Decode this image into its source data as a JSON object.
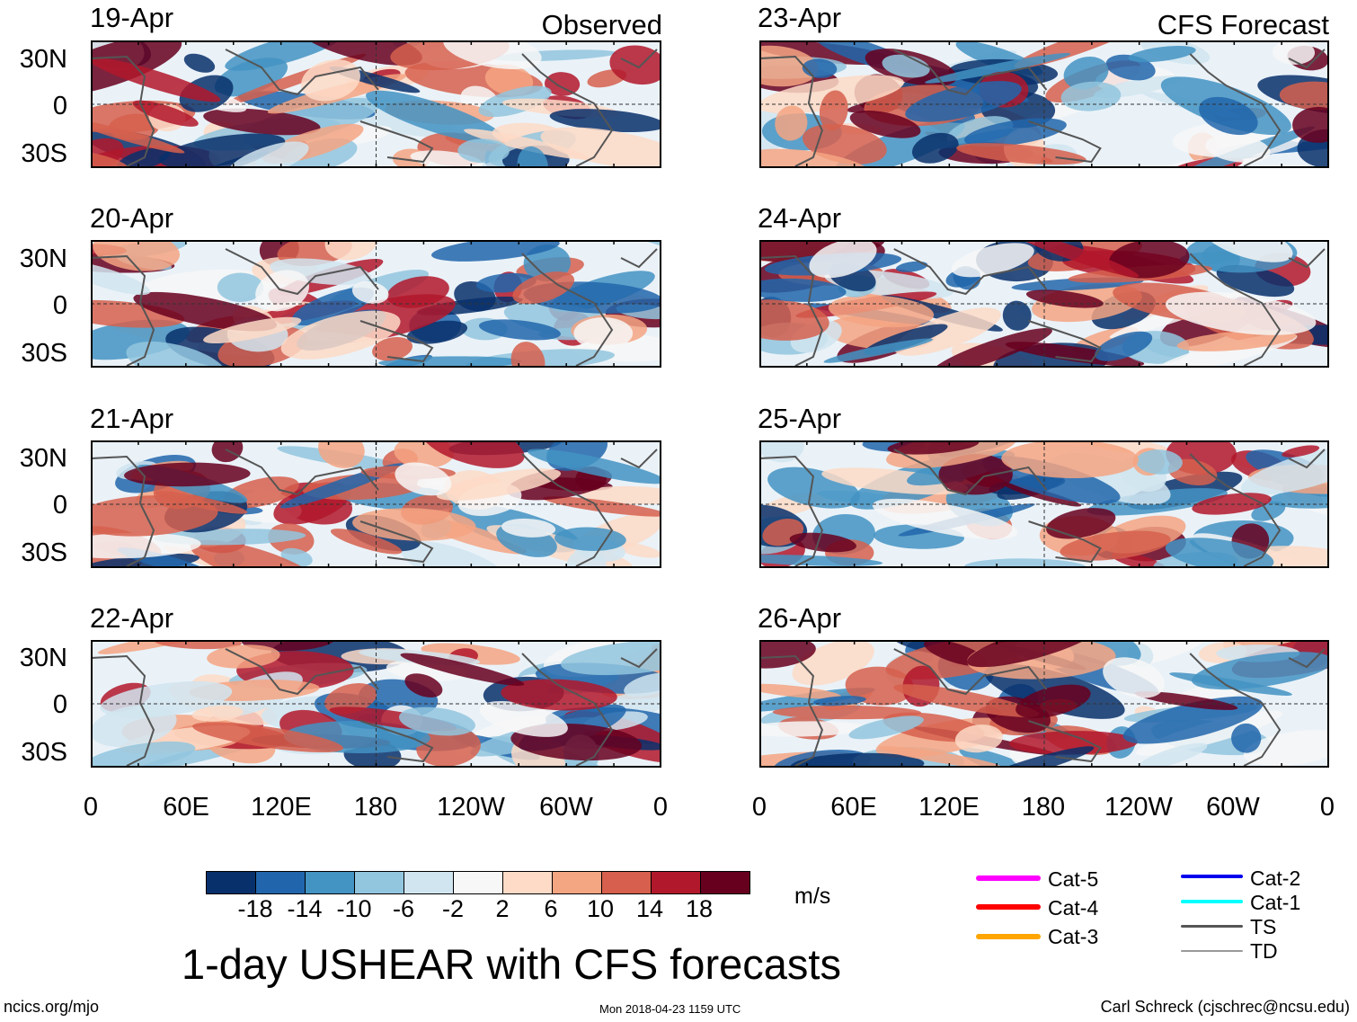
{
  "title": "1-day USHEAR with CFS forecasts",
  "units": "m/s",
  "column_titles": {
    "left": "Observed",
    "right": "CFS Forecast"
  },
  "panels_left": [
    {
      "date": "19-Apr"
    },
    {
      "date": "20-Apr"
    },
    {
      "date": "21-Apr"
    },
    {
      "date": "22-Apr"
    }
  ],
  "panels_right": [
    {
      "date": "23-Apr"
    },
    {
      "date": "24-Apr"
    },
    {
      "date": "25-Apr"
    },
    {
      "date": "26-Apr"
    }
  ],
  "lat_labels": [
    "30N",
    "0",
    "30S"
  ],
  "lon_labels": [
    "0",
    "60E",
    "120E",
    "180",
    "120W",
    "60W",
    "0"
  ],
  "colorbar": {
    "colors": [
      "#08306b",
      "#2166ac",
      "#4393c3",
      "#92c5de",
      "#d1e5f0",
      "#f7f7f7",
      "#fddbc7",
      "#f4a582",
      "#d6604d",
      "#b2182b",
      "#67001f"
    ],
    "ticks": [
      "-18",
      "-14",
      "-10",
      "-6",
      "-2",
      "2",
      "6",
      "10",
      "14",
      "18"
    ]
  },
  "legend": {
    "left": [
      {
        "label": "Cat-5",
        "color": "#ff00ff"
      },
      {
        "label": "Cat-4",
        "color": "#ff0000"
      },
      {
        "label": "Cat-3",
        "color": "#ffa500"
      }
    ],
    "right": [
      {
        "label": "Cat-2",
        "color": "#0000ee"
      },
      {
        "label": "Cat-1",
        "color": "#00ffff"
      },
      {
        "label": "TS",
        "color": "#555555"
      },
      {
        "label": "TD",
        "color": "#999999"
      }
    ]
  },
  "footer": {
    "left": "ncics.org/mjo",
    "center": "Mon 2018-04-23 1159 UTC",
    "right": "Carl Schreck (cjschrec@ncsu.edu)"
  }
}
